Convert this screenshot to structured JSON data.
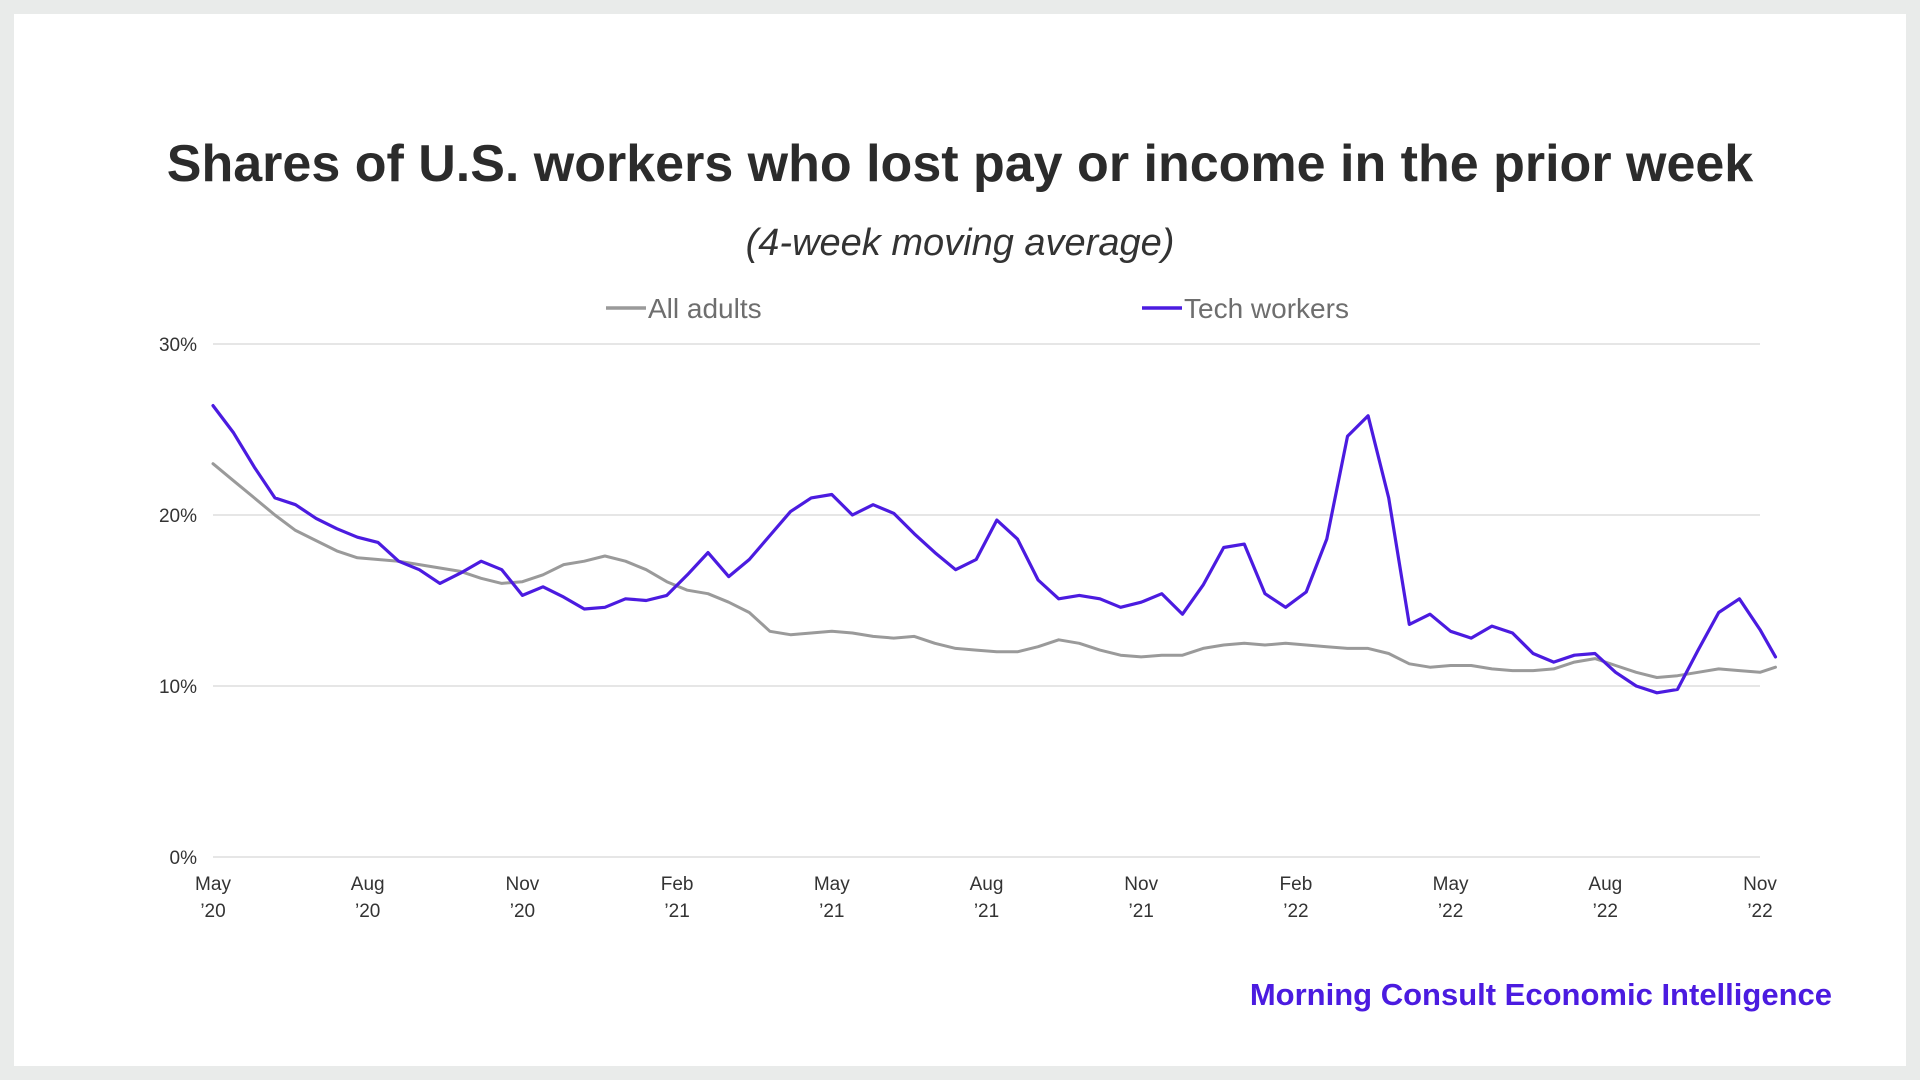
{
  "chart_data": {
    "type": "line",
    "title": "Shares of U.S. workers who lost pay or income in the prior week",
    "subtitle": "(4-week moving average)",
    "ylim": [
      0,
      30
    ],
    "yticks": [
      "0%",
      "10%",
      "20%",
      "30%"
    ],
    "ytick_values": [
      0,
      10,
      20,
      30
    ],
    "xlim": [
      0,
      30
    ],
    "xticks": [
      {
        "month": "May",
        "year": "’20",
        "value": 0
      },
      {
        "month": "Aug",
        "year": "’20",
        "value": 3
      },
      {
        "month": "Nov",
        "year": "’20",
        "value": 6
      },
      {
        "month": "Feb",
        "year": "’21",
        "value": 9
      },
      {
        "month": "May",
        "year": "’21",
        "value": 12
      },
      {
        "month": "Aug",
        "year": "’21",
        "value": 15
      },
      {
        "month": "Nov",
        "year": "’21",
        "value": 18
      },
      {
        "month": "Feb",
        "year": "’22",
        "value": 21
      },
      {
        "month": "May",
        "year": "’22",
        "value": 24
      },
      {
        "month": "Aug",
        "year": "’22",
        "value": 27
      },
      {
        "month": "Nov",
        "year": "’22",
        "value": 30
      }
    ],
    "x_unit": "months since May 2020",
    "grid": true,
    "legend_position": "top-center",
    "series": [
      {
        "name": "All adults",
        "color": "#9a9a9a",
        "points": [
          [
            0,
            23.0
          ],
          [
            0.4,
            22.0
          ],
          [
            0.8,
            21.0
          ],
          [
            1.2,
            20.0
          ],
          [
            1.6,
            19.1
          ],
          [
            2.0,
            18.5
          ],
          [
            2.4,
            17.9
          ],
          [
            2.8,
            17.5
          ],
          [
            3.2,
            17.4
          ],
          [
            3.6,
            17.3
          ],
          [
            4.0,
            17.1
          ],
          [
            4.4,
            16.9
          ],
          [
            4.8,
            16.7
          ],
          [
            5.2,
            16.3
          ],
          [
            5.6,
            16.0
          ],
          [
            6.0,
            16.1
          ],
          [
            6.4,
            16.5
          ],
          [
            6.8,
            17.1
          ],
          [
            7.2,
            17.3
          ],
          [
            7.6,
            17.6
          ],
          [
            8.0,
            17.3
          ],
          [
            8.4,
            16.8
          ],
          [
            8.8,
            16.1
          ],
          [
            9.2,
            15.6
          ],
          [
            9.6,
            15.4
          ],
          [
            10.0,
            14.9
          ],
          [
            10.4,
            14.3
          ],
          [
            10.8,
            13.2
          ],
          [
            11.2,
            13.0
          ],
          [
            11.6,
            13.1
          ],
          [
            12.0,
            13.2
          ],
          [
            12.4,
            13.1
          ],
          [
            12.8,
            12.9
          ],
          [
            13.2,
            12.8
          ],
          [
            13.6,
            12.9
          ],
          [
            14.0,
            12.5
          ],
          [
            14.4,
            12.2
          ],
          [
            14.8,
            12.1
          ],
          [
            15.2,
            12.0
          ],
          [
            15.6,
            12.0
          ],
          [
            16.0,
            12.3
          ],
          [
            16.4,
            12.7
          ],
          [
            16.8,
            12.5
          ],
          [
            17.2,
            12.1
          ],
          [
            17.6,
            11.8
          ],
          [
            18.0,
            11.7
          ],
          [
            18.4,
            11.8
          ],
          [
            18.8,
            11.8
          ],
          [
            19.2,
            12.2
          ],
          [
            19.6,
            12.4
          ],
          [
            20.0,
            12.5
          ],
          [
            20.4,
            12.4
          ],
          [
            20.8,
            12.5
          ],
          [
            21.2,
            12.4
          ],
          [
            21.6,
            12.3
          ],
          [
            22.0,
            12.2
          ],
          [
            22.4,
            12.2
          ],
          [
            22.8,
            11.9
          ],
          [
            23.2,
            11.3
          ],
          [
            23.6,
            11.1
          ],
          [
            24.0,
            11.2
          ],
          [
            24.4,
            11.2
          ],
          [
            24.8,
            11.0
          ],
          [
            25.2,
            10.9
          ],
          [
            25.6,
            10.9
          ],
          [
            26.0,
            11.0
          ],
          [
            26.4,
            11.4
          ],
          [
            26.8,
            11.6
          ],
          [
            27.2,
            11.2
          ],
          [
            27.6,
            10.8
          ],
          [
            28.0,
            10.5
          ],
          [
            28.4,
            10.6
          ],
          [
            28.8,
            10.8
          ],
          [
            29.2,
            11.0
          ],
          [
            29.6,
            10.9
          ],
          [
            30.0,
            10.8
          ],
          [
            30.3,
            11.1
          ]
        ]
      },
      {
        "name": "Tech workers",
        "color": "#4b1be0",
        "points": [
          [
            0,
            26.4
          ],
          [
            0.4,
            24.8
          ],
          [
            0.8,
            22.8
          ],
          [
            1.2,
            21.0
          ],
          [
            1.6,
            20.6
          ],
          [
            2.0,
            19.8
          ],
          [
            2.4,
            19.2
          ],
          [
            2.8,
            18.7
          ],
          [
            3.2,
            18.4
          ],
          [
            3.6,
            17.3
          ],
          [
            4.0,
            16.8
          ],
          [
            4.4,
            16.0
          ],
          [
            4.8,
            16.6
          ],
          [
            5.2,
            17.3
          ],
          [
            5.6,
            16.8
          ],
          [
            6.0,
            15.3
          ],
          [
            6.4,
            15.8
          ],
          [
            6.8,
            15.2
          ],
          [
            7.2,
            14.5
          ],
          [
            7.6,
            14.6
          ],
          [
            8.0,
            15.1
          ],
          [
            8.4,
            15.0
          ],
          [
            8.8,
            15.3
          ],
          [
            9.2,
            16.5
          ],
          [
            9.6,
            17.8
          ],
          [
            10.0,
            16.4
          ],
          [
            10.4,
            17.4
          ],
          [
            10.8,
            18.8
          ],
          [
            11.2,
            20.2
          ],
          [
            11.6,
            21.0
          ],
          [
            12.0,
            21.2
          ],
          [
            12.4,
            20.0
          ],
          [
            12.8,
            20.6
          ],
          [
            13.2,
            20.1
          ],
          [
            13.6,
            18.9
          ],
          [
            14.0,
            17.8
          ],
          [
            14.4,
            16.8
          ],
          [
            14.8,
            17.4
          ],
          [
            15.2,
            19.7
          ],
          [
            15.6,
            18.6
          ],
          [
            16.0,
            16.2
          ],
          [
            16.4,
            15.1
          ],
          [
            16.8,
            15.3
          ],
          [
            17.2,
            15.1
          ],
          [
            17.6,
            14.6
          ],
          [
            18.0,
            14.9
          ],
          [
            18.4,
            15.4
          ],
          [
            18.8,
            14.2
          ],
          [
            19.2,
            15.9
          ],
          [
            19.6,
            18.1
          ],
          [
            20.0,
            18.3
          ],
          [
            20.4,
            15.4
          ],
          [
            20.8,
            14.6
          ],
          [
            21.2,
            15.5
          ],
          [
            21.6,
            18.6
          ],
          [
            22.0,
            24.6
          ],
          [
            22.4,
            25.8
          ],
          [
            22.8,
            21.0
          ],
          [
            23.2,
            13.6
          ],
          [
            23.6,
            14.2
          ],
          [
            24.0,
            13.2
          ],
          [
            24.4,
            12.8
          ],
          [
            24.8,
            13.5
          ],
          [
            25.2,
            13.1
          ],
          [
            25.6,
            11.9
          ],
          [
            26.0,
            11.4
          ],
          [
            26.4,
            11.8
          ],
          [
            26.8,
            11.9
          ],
          [
            27.2,
            10.8
          ],
          [
            27.6,
            10.0
          ],
          [
            28.0,
            9.6
          ],
          [
            28.4,
            9.8
          ],
          [
            28.8,
            12.1
          ],
          [
            29.2,
            14.3
          ],
          [
            29.6,
            15.1
          ],
          [
            30.0,
            13.3
          ],
          [
            30.3,
            11.7
          ]
        ]
      }
    ]
  },
  "brand": {
    "text": "Morning Consult Economic Intelligence",
    "color": "#4b1be0"
  },
  "colors": {
    "gridline": "#dddddd",
    "background": "#ffffff",
    "frame": "#e9ebea"
  }
}
